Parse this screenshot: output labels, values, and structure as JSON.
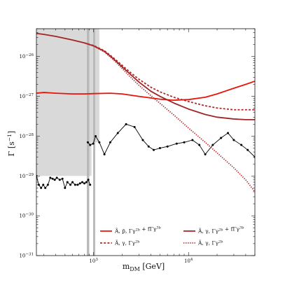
{
  "chart_data": {
    "type": "line",
    "xlabel_main": "m",
    "xlabel_sub": "DM",
    "xlabel_unit": " [GeV]",
    "ylabel": "Γ [s",
    "ylabel_exp": "−1",
    "ylabel_close": "]",
    "x_scale": "log",
    "y_scale": "log",
    "xlim": [
      250,
      50000
    ],
    "ylim": [
      1e-31,
      5e-26
    ],
    "x_ticks": [
      {
        "value": 1000,
        "base": "10",
        "exp": "3"
      },
      {
        "value": 10000,
        "base": "10",
        "exp": "4"
      }
    ],
    "y_ticks": [
      {
        "value": 1e-26,
        "base": "10",
        "exp": "−26"
      },
      {
        "value": 1e-27,
        "base": "10",
        "exp": "−27"
      },
      {
        "value": 1e-28,
        "base": "10",
        "exp": "−28"
      },
      {
        "value": 1e-29,
        "base": "10",
        "exp": "−29"
      },
      {
        "value": 1e-30,
        "base": "10",
        "exp": "−30"
      },
      {
        "value": 1e-31,
        "base": "10",
        "exp": "−31"
      }
    ],
    "excluded_region": {
      "color": "#d9d9d9",
      "upper_edge": [
        [
          250,
          1e-29
        ],
        [
          950,
          1e-29
        ],
        [
          950,
          7e-29
        ],
        [
          1150,
          7e-29
        ]
      ]
    },
    "vertical_bands": [
      {
        "x_range": [
          850,
          900
        ],
        "color": "#b8b8b8"
      },
      {
        "x_range": [
          990,
          1040
        ],
        "color": "#b8b8b8"
      }
    ],
    "black_limit": {
      "color": "#000000",
      "segments": [
        [
          [
            250,
            1e-29
          ],
          [
            265,
            6e-30
          ],
          [
            280,
            5e-30
          ],
          [
            295,
            6e-30
          ],
          [
            310,
            5e-30
          ],
          [
            330,
            6e-30
          ],
          [
            350,
            9e-30
          ],
          [
            370,
            8.5e-30
          ],
          [
            390,
            8e-30
          ],
          [
            410,
            9e-30
          ],
          [
            440,
            8e-30
          ],
          [
            470,
            8.5e-30
          ],
          [
            500,
            5e-30
          ],
          [
            530,
            7e-30
          ],
          [
            570,
            6e-30
          ],
          [
            600,
            7e-30
          ],
          [
            640,
            6e-30
          ],
          [
            680,
            6e-30
          ],
          [
            720,
            6.5e-30
          ],
          [
            760,
            7e-30
          ],
          [
            800,
            6.5e-30
          ],
          [
            840,
            7e-30
          ],
          [
            880,
            8e-30
          ],
          [
            920,
            6e-30
          ]
        ],
        [
          [
            870,
            7e-29
          ],
          [
            920,
            6e-29
          ],
          [
            990,
            6.5e-29
          ],
          [
            1050,
            1e-28
          ],
          [
            1150,
            7e-29
          ],
          [
            1300,
            3.5e-29
          ],
          [
            1500,
            7e-29
          ],
          [
            1800,
            1.2e-28
          ],
          [
            2200,
            2e-28
          ],
          [
            2700,
            1.7e-28
          ],
          [
            3300,
            8e-29
          ],
          [
            3800,
            5.5e-29
          ],
          [
            4300,
            4.5e-29
          ],
          [
            5000,
            5e-29
          ],
          [
            6000,
            5.5e-29
          ],
          [
            7500,
            6.5e-29
          ],
          [
            9000,
            7e-29
          ],
          [
            11000,
            8e-29
          ],
          [
            13000,
            6e-29
          ],
          [
            15000,
            3.5e-29
          ],
          [
            18000,
            6e-29
          ],
          [
            22000,
            9e-29
          ],
          [
            26000,
            1.2e-28
          ],
          [
            30000,
            8e-29
          ],
          [
            36000,
            6e-29
          ],
          [
            42000,
            4.5e-29
          ],
          [
            50000,
            3e-29
          ]
        ]
      ]
    },
    "series": [
      {
        "style": "solid-red",
        "color": "#e8140a",
        "dash": "",
        "x": [
          250,
          300,
          400,
          600,
          800,
          1000,
          1500,
          2000,
          3000,
          5000,
          7000,
          10000,
          15000,
          20000,
          30000,
          40000,
          50000
        ],
        "y": [
          1.2e-27,
          1.25e-27,
          1.2e-27,
          1.15e-27,
          1.15e-27,
          1.17e-27,
          1.2e-27,
          1.15e-27,
          1e-27,
          8.5e-28,
          8e-28,
          8.3e-28,
          9.5e-28,
          1.15e-27,
          1.6e-27,
          2e-27,
          2.4e-27
        ]
      },
      {
        "style": "solid-darkred",
        "color": "#a02626",
        "dash": "",
        "x": [
          250,
          300,
          400,
          600,
          800,
          1000,
          1300,
          1600,
          2000,
          2500,
          3000,
          4000,
          5000,
          7000,
          10000,
          15000,
          20000,
          30000,
          40000,
          50000
        ],
        "y": [
          3.8e-26,
          3.6e-26,
          3.2e-26,
          2.6e-26,
          2.2e-26,
          1.85e-26,
          1.35e-26,
          9e-27,
          5.5e-27,
          3.4e-27,
          2.3e-27,
          1.35e-27,
          1e-27,
          6.8e-28,
          4.8e-28,
          3.5e-28,
          3e-28,
          2.7e-28,
          2.6e-28,
          2.6e-28
        ]
      },
      {
        "style": "dashed-darkred",
        "color": "#b0282a",
        "dash": "3,2.2",
        "x": [
          800,
          1000,
          1300,
          1600,
          2000,
          2500,
          3000,
          4000,
          5000,
          7000,
          10000,
          15000,
          20000,
          30000,
          40000,
          50000
        ],
        "y": [
          2.2e-26,
          1.9e-26,
          1.4e-26,
          9.5e-27,
          6e-27,
          3.8e-27,
          2.7e-27,
          1.7e-27,
          1.3e-27,
          9.5e-28,
          7.4e-28,
          5.8e-28,
          5.1e-28,
          4.6e-28,
          4.6e-28,
          4.6e-28
        ]
      },
      {
        "style": "dotted-darkred",
        "color": "#b0282a",
        "dash": "1.3,1.8",
        "x": [
          800,
          1000,
          1300,
          1600,
          2000,
          2500,
          3000,
          4000,
          5000,
          7000,
          10000,
          15000,
          20000,
          30000,
          40000,
          50000
        ],
        "y": [
          2.2e-26,
          1.85e-26,
          1.3e-26,
          8.5e-27,
          5e-27,
          2.9e-27,
          1.9e-27,
          1.05e-27,
          6.7e-28,
          3.4e-28,
          1.6e-28,
          7e-29,
          3.8e-29,
          1.6e-29,
          8e-30,
          4e-30
        ]
      }
    ],
    "legend": {
      "placement": "bottom-right",
      "entries": [
        {
          "label": "Ã, p̄, Γγ^2b + fΓγ^3b",
          "series_index": 0
        },
        {
          "label": "Ã, γ, Γγ^2b + fΓγ^3b",
          "series_index": 1
        },
        {
          "label": "Ã, γ, Γγ^2b",
          "series_index": 2
        },
        {
          "label": "Ã, γ, Γγ^2b",
          "series_index": 3
        }
      ]
    },
    "grid": false
  }
}
